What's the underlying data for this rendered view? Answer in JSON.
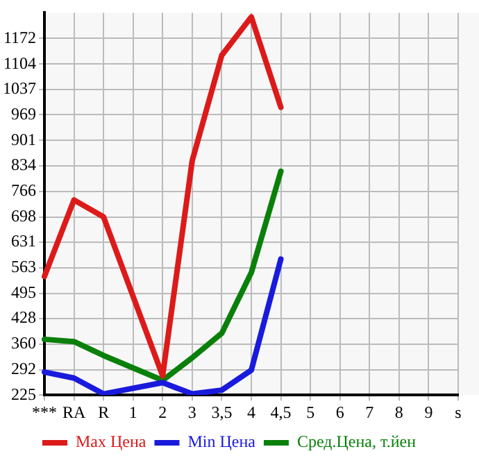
{
  "chart_data": {
    "type": "line",
    "categories": [
      "***",
      "RA",
      "R",
      "1",
      "2",
      "3",
      "3,5",
      "4",
      "4,5",
      "5",
      "6",
      "7",
      "8",
      "9",
      "s"
    ],
    "series": [
      {
        "name": "Max Цена",
        "color": "#dd1a1a",
        "values": [
          540,
          743,
          698,
          null,
          276,
          847,
          1127,
          1229,
          989,
          null,
          null,
          null,
          null,
          null,
          null
        ]
      },
      {
        "name": "Min Цена",
        "color": "#1a1add",
        "values": [
          286,
          270,
          228,
          null,
          258,
          228,
          238,
          291,
          586,
          null,
          null,
          null,
          null,
          null,
          null
        ]
      },
      {
        "name": "Сред.Цена, т.йен",
        "color": "#0a800a",
        "values": [
          373,
          367,
          330,
          null,
          264,
          324,
          389,
          550,
          819,
          null,
          null,
          null,
          null,
          null,
          null
        ]
      }
    ],
    "ylim": [
      225,
      1240
    ],
    "yticks": [
      225,
      292,
      360,
      428,
      495,
      563,
      631,
      698,
      766,
      834,
      901,
      969,
      1037,
      1104,
      1172
    ],
    "grid": true,
    "legend": "bottom",
    "marker": "none",
    "line_style": "solid"
  }
}
